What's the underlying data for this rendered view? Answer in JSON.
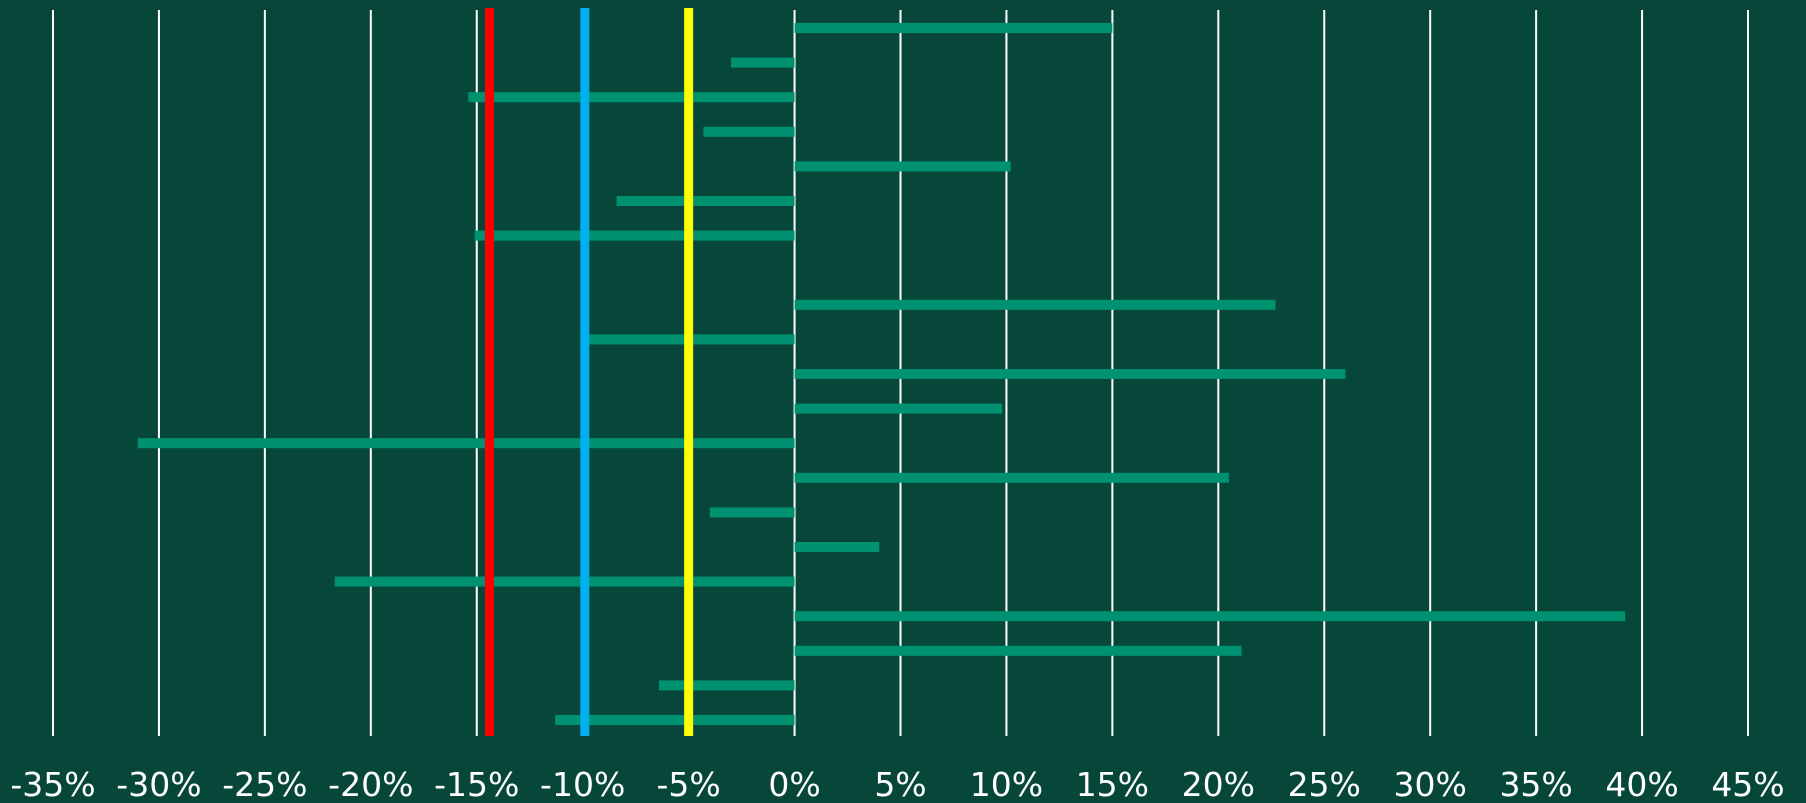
{
  "chart_data": {
    "type": "bar",
    "orientation": "horizontal",
    "title": "",
    "xlabel": "",
    "ylabel": "",
    "xlim": [
      -35,
      45
    ],
    "tick_values": [
      -35,
      -30,
      -25,
      -20,
      -15,
      -10,
      -5,
      0,
      5,
      10,
      15,
      20,
      25,
      30,
      35,
      40,
      45
    ],
    "tick_labels": [
      "-35%",
      "-30%",
      "-25%",
      "-20%",
      "-15%",
      "-10%",
      "-5%",
      "0%",
      "5%",
      "10%",
      "15%",
      "20%",
      "25%",
      "30%",
      "35%",
      "40%",
      "45%"
    ],
    "grid": true,
    "values": [
      15.0,
      -3.0,
      -15.4,
      -4.3,
      10.2,
      -8.4,
      -15.1,
      0,
      22.7,
      -9.8,
      26.0,
      9.8,
      -31.0,
      20.5,
      -4.0,
      4.0,
      -21.7,
      39.2,
      21.1,
      -6.4,
      -11.3
    ],
    "reference_lines": [
      {
        "value": -14.4,
        "color": "#ff0000"
      },
      {
        "value": -9.9,
        "color": "#00b0f0"
      },
      {
        "value": -5.0,
        "color": "#ffff00"
      }
    ],
    "colors": {
      "background": "#07473a",
      "bar": "#009270",
      "grid": "#ffffff",
      "text": "#ffffff"
    }
  }
}
